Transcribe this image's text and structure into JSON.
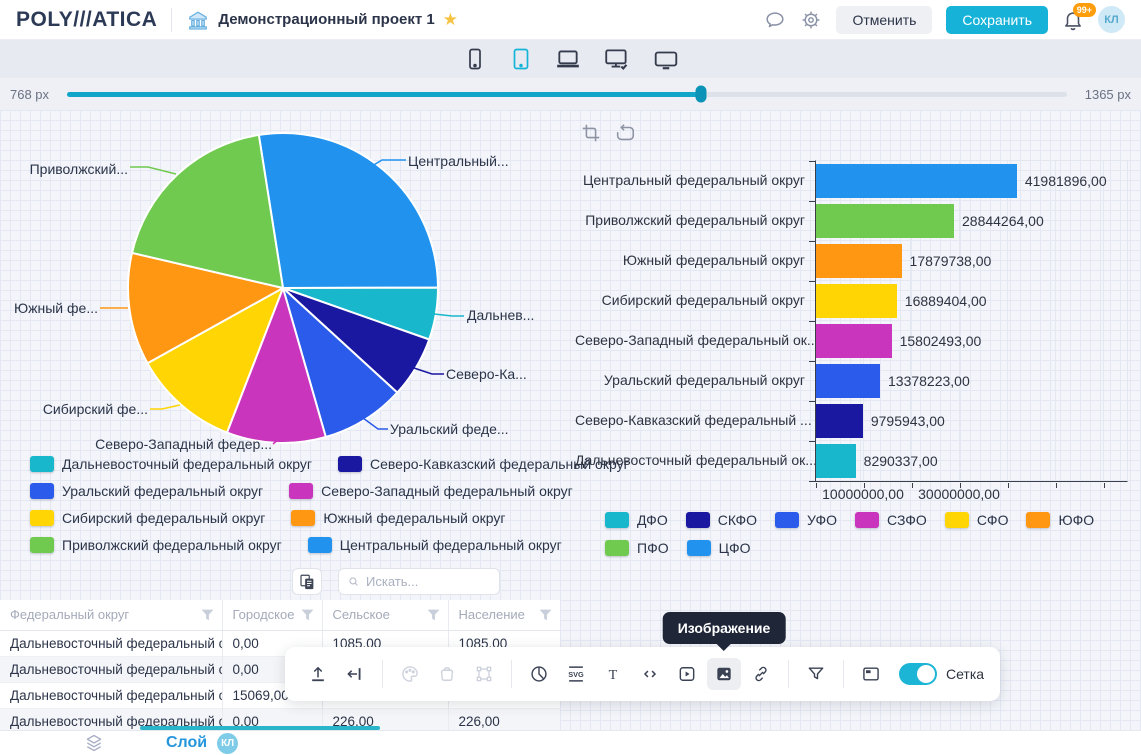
{
  "header": {
    "logo": "POLY///ATICA",
    "title": "Демонстрационный проект 1",
    "cancel": "Отменить",
    "save": "Сохранить",
    "badge": "99+",
    "avatar": "КЛ"
  },
  "device_bar": {
    "devices": [
      "phone",
      "tablet",
      "laptop",
      "desktop-with-check",
      "tv"
    ],
    "active": "tablet"
  },
  "sizer": {
    "min": "768 px",
    "max": "1365 px",
    "value_percent": 63
  },
  "chart_data": [
    {
      "type": "pie",
      "labels": [
        "Центральный федеральный округ",
        "Дальневосточный федеральный округ",
        "Северо-Кавказский федеральный округ",
        "Уральский федеральный округ",
        "Северо-Западный федеральный округ",
        "Сибирский федеральный округ",
        "Южный федеральный округ",
        "Приволжский федеральный округ"
      ],
      "values": [
        41981896,
        8290337,
        9795943,
        13378223,
        15802493,
        16889404,
        17879738,
        28844264
      ],
      "colors": [
        "#2193ef",
        "#18b7cb",
        "#1a17a0",
        "#2b5bea",
        "#c935bc",
        "#ffd503",
        "#ff9713",
        "#70ca50"
      ],
      "callouts": [
        "Центральный...",
        "Дальнев...",
        "Северо-Ка...",
        "Уральский феде...",
        "Северо-Западный федер...",
        "Сибирский фе...",
        "Южный фе...",
        "Приволжский..."
      ],
      "start_angle_deg": -9,
      "legend_position": "bottom",
      "legend": [
        {
          "label": "Дальневосточный федеральный округ",
          "color": "#18b7cb"
        },
        {
          "label": "Северо-Кавказский федеральный округ",
          "color": "#1a17a0"
        },
        {
          "label": "Уральский федеральный округ",
          "color": "#2b5bea"
        },
        {
          "label": "Северо-Западный федеральный округ",
          "color": "#c935bc"
        },
        {
          "label": "Сибирский федеральный округ",
          "color": "#ffd503"
        },
        {
          "label": "Южный федеральный округ",
          "color": "#ff9713"
        },
        {
          "label": "Приволжский федеральный округ",
          "color": "#70ca50"
        },
        {
          "label": "Центральный федеральный округ",
          "color": "#2193ef"
        }
      ]
    },
    {
      "type": "bar",
      "orientation": "horizontal",
      "categories": [
        "Центральный федеральный округ",
        "Приволжский федеральный округ",
        "Южный федеральный округ",
        "Сибирский федеральный округ",
        "Северо-Западный федеральный ок...",
        "Уральский федеральный округ",
        "Северо-Кавказский федеральный ...",
        "Дальневосточный федеральный ок..."
      ],
      "values": [
        41981896,
        28844264,
        17879738,
        16889404,
        15802493,
        13378223,
        9795943,
        8290337
      ],
      "value_labels": [
        "41981896,00",
        "28844264,00",
        "17879738,00",
        "16889404,00",
        "15802493,00",
        "13378223,00",
        "9795943,00",
        "8290337,00"
      ],
      "colors": [
        "#2193ef",
        "#70ca50",
        "#ff9713",
        "#ffd503",
        "#c935bc",
        "#2b5bea",
        "#1a17a0",
        "#18b7cb"
      ],
      "xlim": [
        0,
        65000000
      ],
      "x_tick_labels": [
        "10000000,00",
        "30000000,00"
      ],
      "grid": true,
      "legend_position": "bottom",
      "legend": [
        {
          "label": "ДФО",
          "color": "#18b7cb"
        },
        {
          "label": "СКФО",
          "color": "#1a17a0"
        },
        {
          "label": "УФО",
          "color": "#2b5bea"
        },
        {
          "label": "СЗФО",
          "color": "#c935bc"
        },
        {
          "label": "СФО",
          "color": "#ffd503"
        },
        {
          "label": "ЮФО",
          "color": "#ff9713"
        },
        {
          "label": "ПФО",
          "color": "#70ca50"
        },
        {
          "label": "ЦФО",
          "color": "#2193ef"
        }
      ]
    }
  ],
  "table": {
    "search_placeholder": "Искать...",
    "columns": [
      "Федеральный округ",
      "Городское",
      "Сельское",
      "Население"
    ],
    "rows": [
      [
        "Дальневосточный федеральный округ",
        "0,00",
        "1085,00",
        "1085,00"
      ],
      [
        "Дальневосточный федеральный округ",
        "0,00",
        "",
        ""
      ],
      [
        "Дальневосточный федеральный округ",
        "15069,00",
        "",
        ""
      ],
      [
        "Дальневосточный федеральный округ",
        "0,00",
        "226,00",
        "226,00"
      ]
    ]
  },
  "toolbar": {
    "tooltip": "Изображение",
    "grid_label": "Сетка",
    "grid_on": true,
    "icons": [
      "upload",
      "insert-left",
      "palette",
      "bucket",
      "frame",
      "pie-chart",
      "svg",
      "text",
      "code",
      "video",
      "image",
      "link",
      "filter",
      "window"
    ]
  },
  "footer": {
    "layer": "Слой",
    "badge": "КЛ"
  }
}
